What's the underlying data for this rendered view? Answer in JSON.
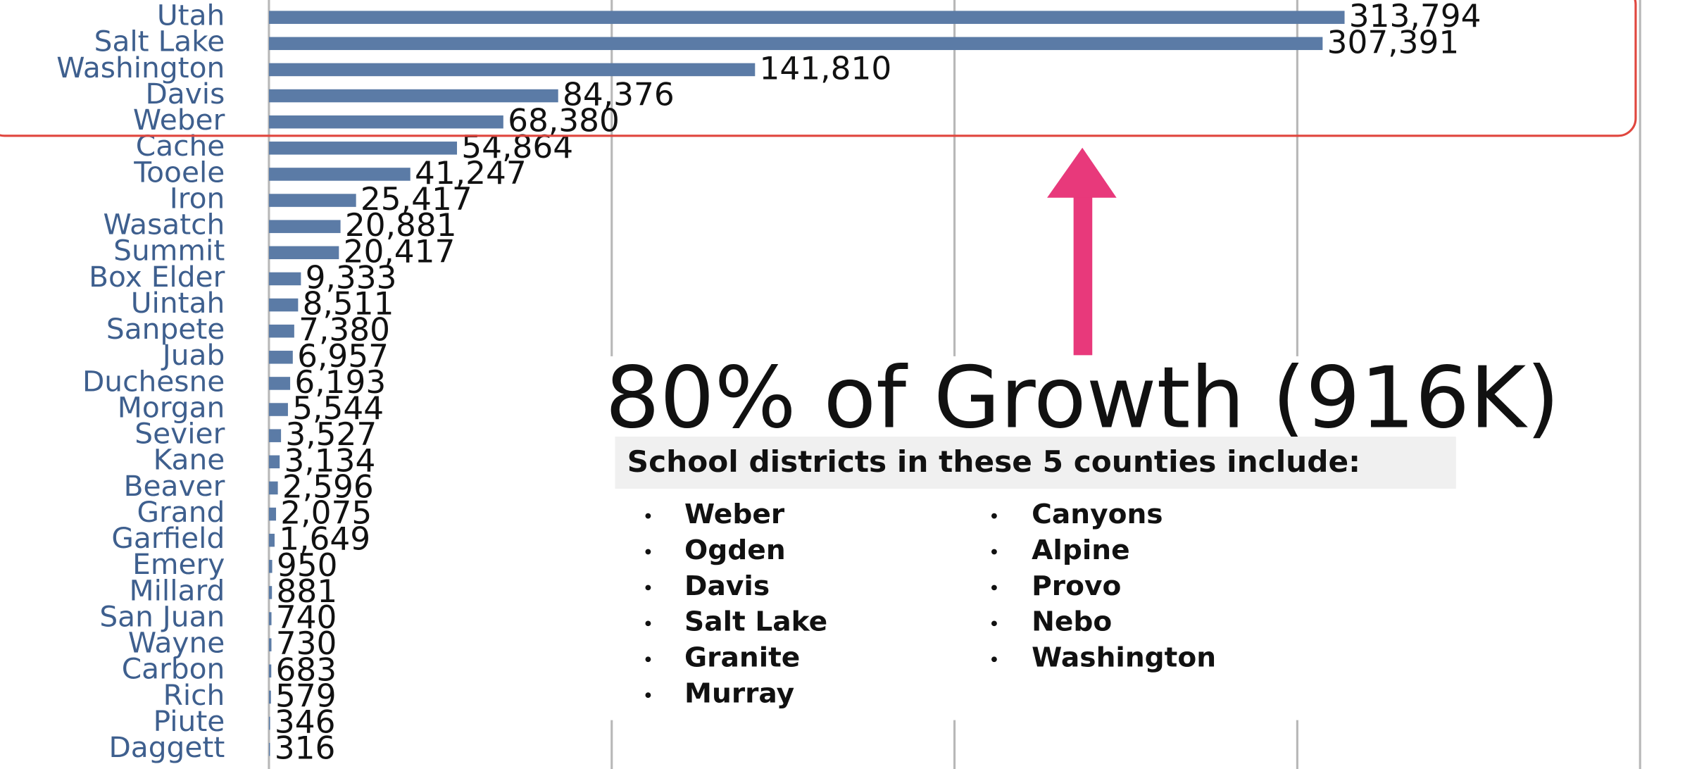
{
  "chart_data": {
    "type": "bar",
    "orientation": "horizontal",
    "categories": [
      "Utah",
      "Salt Lake",
      "Washington",
      "Davis",
      "Weber",
      "Cache",
      "Tooele",
      "Iron",
      "Wasatch",
      "Summit",
      "Box Elder",
      "Uintah",
      "Sanpete",
      "Juab",
      "Duchesne",
      "Morgan",
      "Sevier",
      "Kane",
      "Beaver",
      "Grand",
      "Garfield",
      "Emery",
      "Millard",
      "San Juan",
      "Wayne",
      "Carbon",
      "Rich",
      "Piute",
      "Daggett"
    ],
    "values": [
      313794,
      307391,
      141810,
      84376,
      68380,
      54864,
      41247,
      25417,
      20881,
      20417,
      9333,
      8511,
      7380,
      6957,
      6193,
      5544,
      3527,
      3134,
      2596,
      2075,
      1649,
      950,
      881,
      740,
      730,
      683,
      579,
      346,
      316
    ],
    "value_labels": [
      "313,794",
      "307,391",
      "141,810",
      "84,376",
      "68,380",
      "54,864",
      "41,247",
      "25,417",
      "20,881",
      "20,417",
      "9,333",
      "8,511",
      "7,380",
      "6,957",
      "6,193",
      "5,544",
      "3,527",
      "3,134",
      "2,596",
      "2,075",
      "1,649",
      "950",
      "881",
      "740",
      "730",
      "683",
      "579",
      "346",
      "316"
    ],
    "color": "#5b7ba6",
    "xlim": [
      0,
      400000
    ],
    "xticks": [
      0,
      100000,
      200000,
      300000,
      400000
    ],
    "grid": true,
    "annotations": {
      "headline": "80% of Growth (916K)",
      "box_title": "School districts in these 5 counties include:",
      "districts_left": [
        "Weber",
        "Ogden",
        "Davis",
        "Salt Lake",
        "Granite",
        "Murray"
      ],
      "districts_right": [
        "Canyons",
        "Alpine",
        "Provo",
        "Nebo",
        "Washington"
      ]
    }
  }
}
